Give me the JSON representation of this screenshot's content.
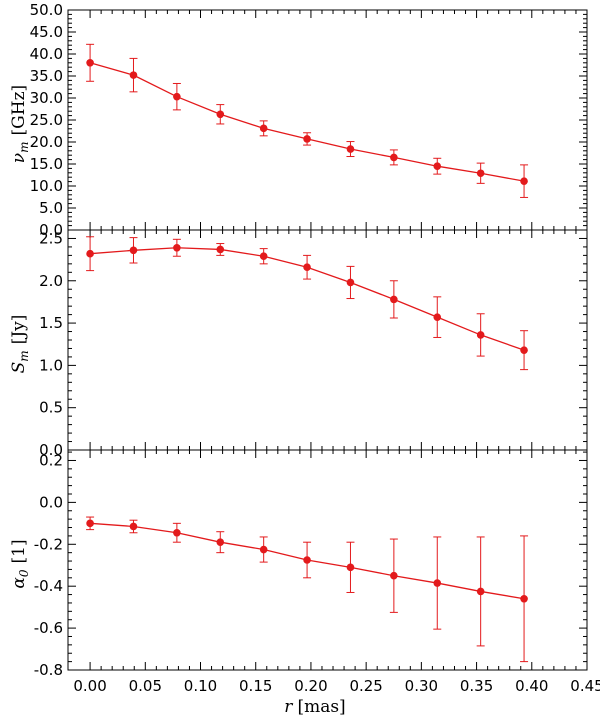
{
  "figure": {
    "xlabel_var": "r",
    "xlabel_unit": "[mas]",
    "x_ticks": [
      "0.00",
      "0.05",
      "0.10",
      "0.15",
      "0.20",
      "0.25",
      "0.30",
      "0.35",
      "0.40",
      "0.45"
    ]
  },
  "chart_data": [
    {
      "type": "line",
      "ylabel_var": "ν",
      "ylabel_sub": "m",
      "ylabel_unit": "[GHz]",
      "xlim": [
        -0.02,
        0.45
      ],
      "ylim": [
        0.0,
        50.0
      ],
      "y_ticks": [
        "0.0",
        "5.0",
        "10.0",
        "15.0",
        "20.0",
        "25.0",
        "30.0",
        "35.0",
        "40.0",
        "45.0",
        "50.0"
      ],
      "color": "#e31a1c",
      "series": [
        {
          "x": [
            0.0,
            0.0393,
            0.0786,
            0.1179,
            0.1572,
            0.1965,
            0.2358,
            0.2751,
            0.3144,
            0.3537,
            0.393
          ],
          "y": [
            38.0,
            35.2,
            30.3,
            26.3,
            23.1,
            20.7,
            18.4,
            16.5,
            14.5,
            12.9,
            11.1
          ],
          "err": [
            4.2,
            3.8,
            3.0,
            2.2,
            1.7,
            1.4,
            1.7,
            1.7,
            1.8,
            2.3,
            3.7
          ]
        }
      ]
    },
    {
      "type": "line",
      "ylabel_var": "S",
      "ylabel_sub": "m",
      "ylabel_unit": "[Jy]",
      "xlim": [
        -0.02,
        0.45
      ],
      "ylim": [
        0.0,
        2.6
      ],
      "y_ticks": [
        "0.0",
        "0.5",
        "1.0",
        "1.5",
        "2.0",
        "2.5"
      ],
      "color": "#e31a1c",
      "series": [
        {
          "x": [
            0.0,
            0.0393,
            0.0786,
            0.1179,
            0.1572,
            0.1965,
            0.2358,
            0.2751,
            0.3144,
            0.3537,
            0.393
          ],
          "y": [
            2.32,
            2.36,
            2.39,
            2.37,
            2.29,
            2.16,
            1.98,
            1.78,
            1.57,
            1.36,
            1.18
          ],
          "err": [
            0.2,
            0.15,
            0.1,
            0.07,
            0.09,
            0.14,
            0.19,
            0.22,
            0.24,
            0.25,
            0.23
          ]
        }
      ]
    },
    {
      "type": "line",
      "ylabel_var": "α",
      "ylabel_sub": "0",
      "ylabel_unit": "[1]",
      "xlim": [
        -0.02,
        0.45
      ],
      "ylim": [
        -0.8,
        0.25
      ],
      "y_ticks": [
        "0.2",
        "0.0",
        "-0.2",
        "-0.4",
        "-0.6",
        "-0.8"
      ],
      "color": "#e31a1c",
      "series": [
        {
          "x": [
            0.0,
            0.0393,
            0.0786,
            0.1179,
            0.1572,
            0.1965,
            0.2358,
            0.2751,
            0.3144,
            0.3537,
            0.393
          ],
          "y": [
            -0.1,
            -0.115,
            -0.145,
            -0.19,
            -0.225,
            -0.275,
            -0.31,
            -0.35,
            -0.385,
            -0.425,
            -0.46
          ],
          "err": [
            0.03,
            0.03,
            0.045,
            0.05,
            0.06,
            0.085,
            0.12,
            0.175,
            0.22,
            0.26,
            0.3
          ]
        }
      ]
    }
  ]
}
